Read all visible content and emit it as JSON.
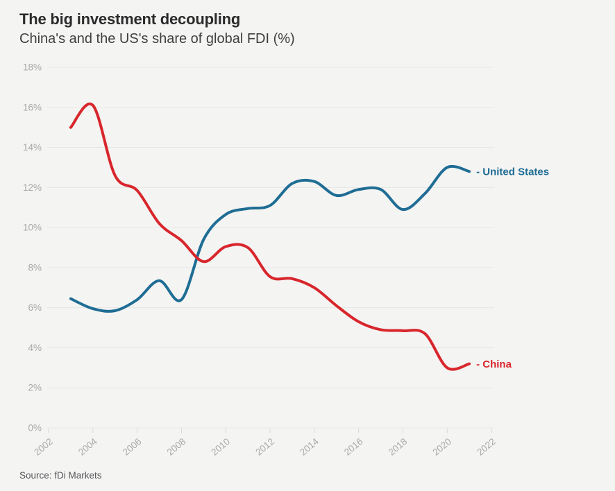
{
  "header": {
    "title": "The big investment decoupling",
    "subtitle": "China's and the US's share of global FDI (%)"
  },
  "source": "Source: fDi Markets",
  "colors": {
    "background": "#f4f4f3",
    "grid": "#e7e7e5",
    "tick": "#d6d6d4",
    "axis_text": "#a8a8a6",
    "us_line": "#1f6d94",
    "china_line": "#d8262c"
  },
  "chart_data": {
    "type": "line",
    "title": "The big investment decoupling",
    "subtitle": "China's and the US's share of global FDI (%)",
    "xlabel": "",
    "ylabel": "Share of global FDI (%)",
    "x": [
      2003,
      2004,
      2005,
      2006,
      2007,
      2008,
      2009,
      2010,
      2011,
      2012,
      2013,
      2014,
      2015,
      2016,
      2017,
      2018,
      2019,
      2020,
      2021
    ],
    "series": [
      {
        "name": "United States",
        "end_label": "- United States",
        "color": "#1f6d94",
        "values": [
          6.45,
          5.95,
          5.85,
          6.4,
          7.35,
          6.4,
          9.4,
          10.65,
          10.95,
          11.1,
          12.2,
          12.3,
          11.6,
          11.9,
          11.9,
          10.9,
          11.7,
          13.0,
          12.8
        ]
      },
      {
        "name": "China",
        "end_label": "- China",
        "color": "#d8262c",
        "values": [
          15.0,
          16.1,
          12.6,
          11.85,
          10.2,
          9.35,
          8.3,
          9.05,
          9.0,
          7.55,
          7.45,
          7.0,
          6.1,
          5.3,
          4.9,
          4.85,
          4.7,
          3.0,
          3.2
        ]
      }
    ],
    "xlim": [
      2002,
      2022
    ],
    "ylim": [
      0,
      18
    ],
    "x_tick_labels": [
      "2002",
      "2004",
      "2006",
      "2008",
      "2010",
      "2012",
      "2014",
      "2016",
      "2018",
      "2020",
      "2022"
    ],
    "y_tick_labels": [
      "0%",
      "2%",
      "4%",
      "6%",
      "8%",
      "10%",
      "12%",
      "14%",
      "16%",
      "18%"
    ],
    "grid": "horizontal",
    "legend": "line-end-labels",
    "curve": "smooth"
  }
}
